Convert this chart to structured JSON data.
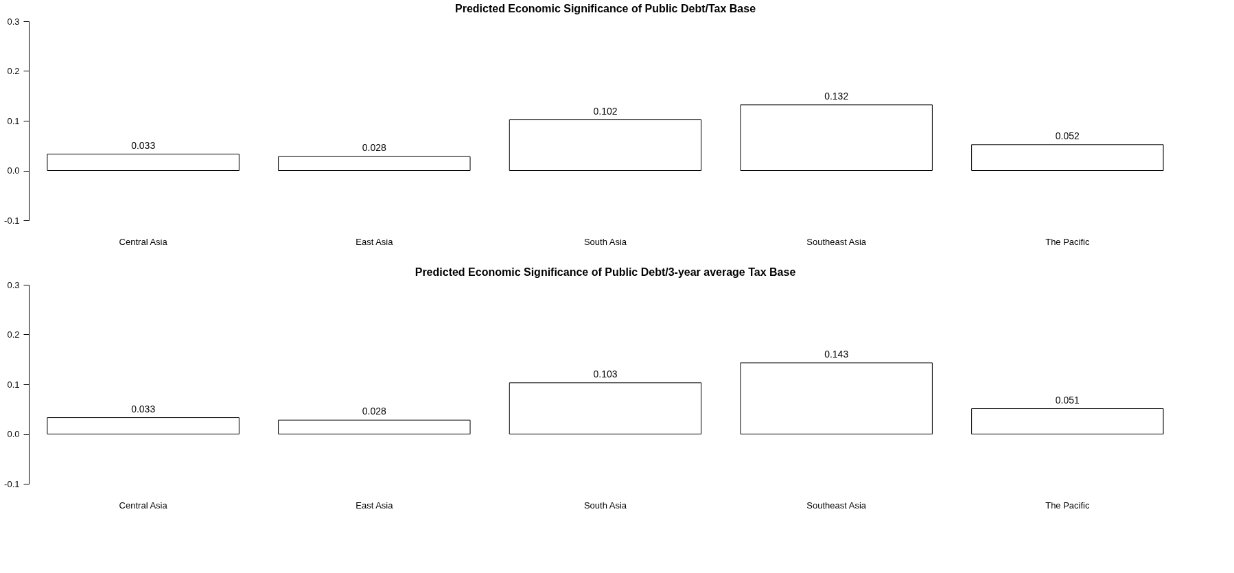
{
  "chart_data": [
    {
      "type": "bar",
      "title": "Predicted Economic Significance of Public Debt/Tax Base",
      "categories": [
        "Central Asia",
        "East Asia",
        "South Asia",
        "Southeast Asia",
        "The Pacific"
      ],
      "values": [
        0.033,
        0.028,
        0.102,
        0.132,
        0.052
      ],
      "color": "#ffffff",
      "ylim": [
        -0.1,
        0.3
      ],
      "yticks": [
        -0.1,
        {
          "value": 0,
          "label": "0.0"
        },
        0.1,
        0.2,
        0.3
      ],
      "data_labels": true,
      "grid": false,
      "legend": false
    },
    {
      "type": "bar",
      "title": "Predicted Economic Significance of Public Debt/3-year average Tax Base",
      "categories": [
        "Central Asia",
        "East Asia",
        "South Asia",
        "Southeast Asia",
        "The Pacific"
      ],
      "values": [
        0.033,
        0.028,
        0.103,
        0.143,
        0.051
      ],
      "color": "#ffffff",
      "ylim": [
        -0.1,
        0.3
      ],
      "yticks": [
        -0.1,
        {
          "value": 0,
          "label": "0.0"
        },
        0.1,
        0.2,
        0.3
      ],
      "data_labels": true,
      "grid": false,
      "legend": false
    }
  ]
}
